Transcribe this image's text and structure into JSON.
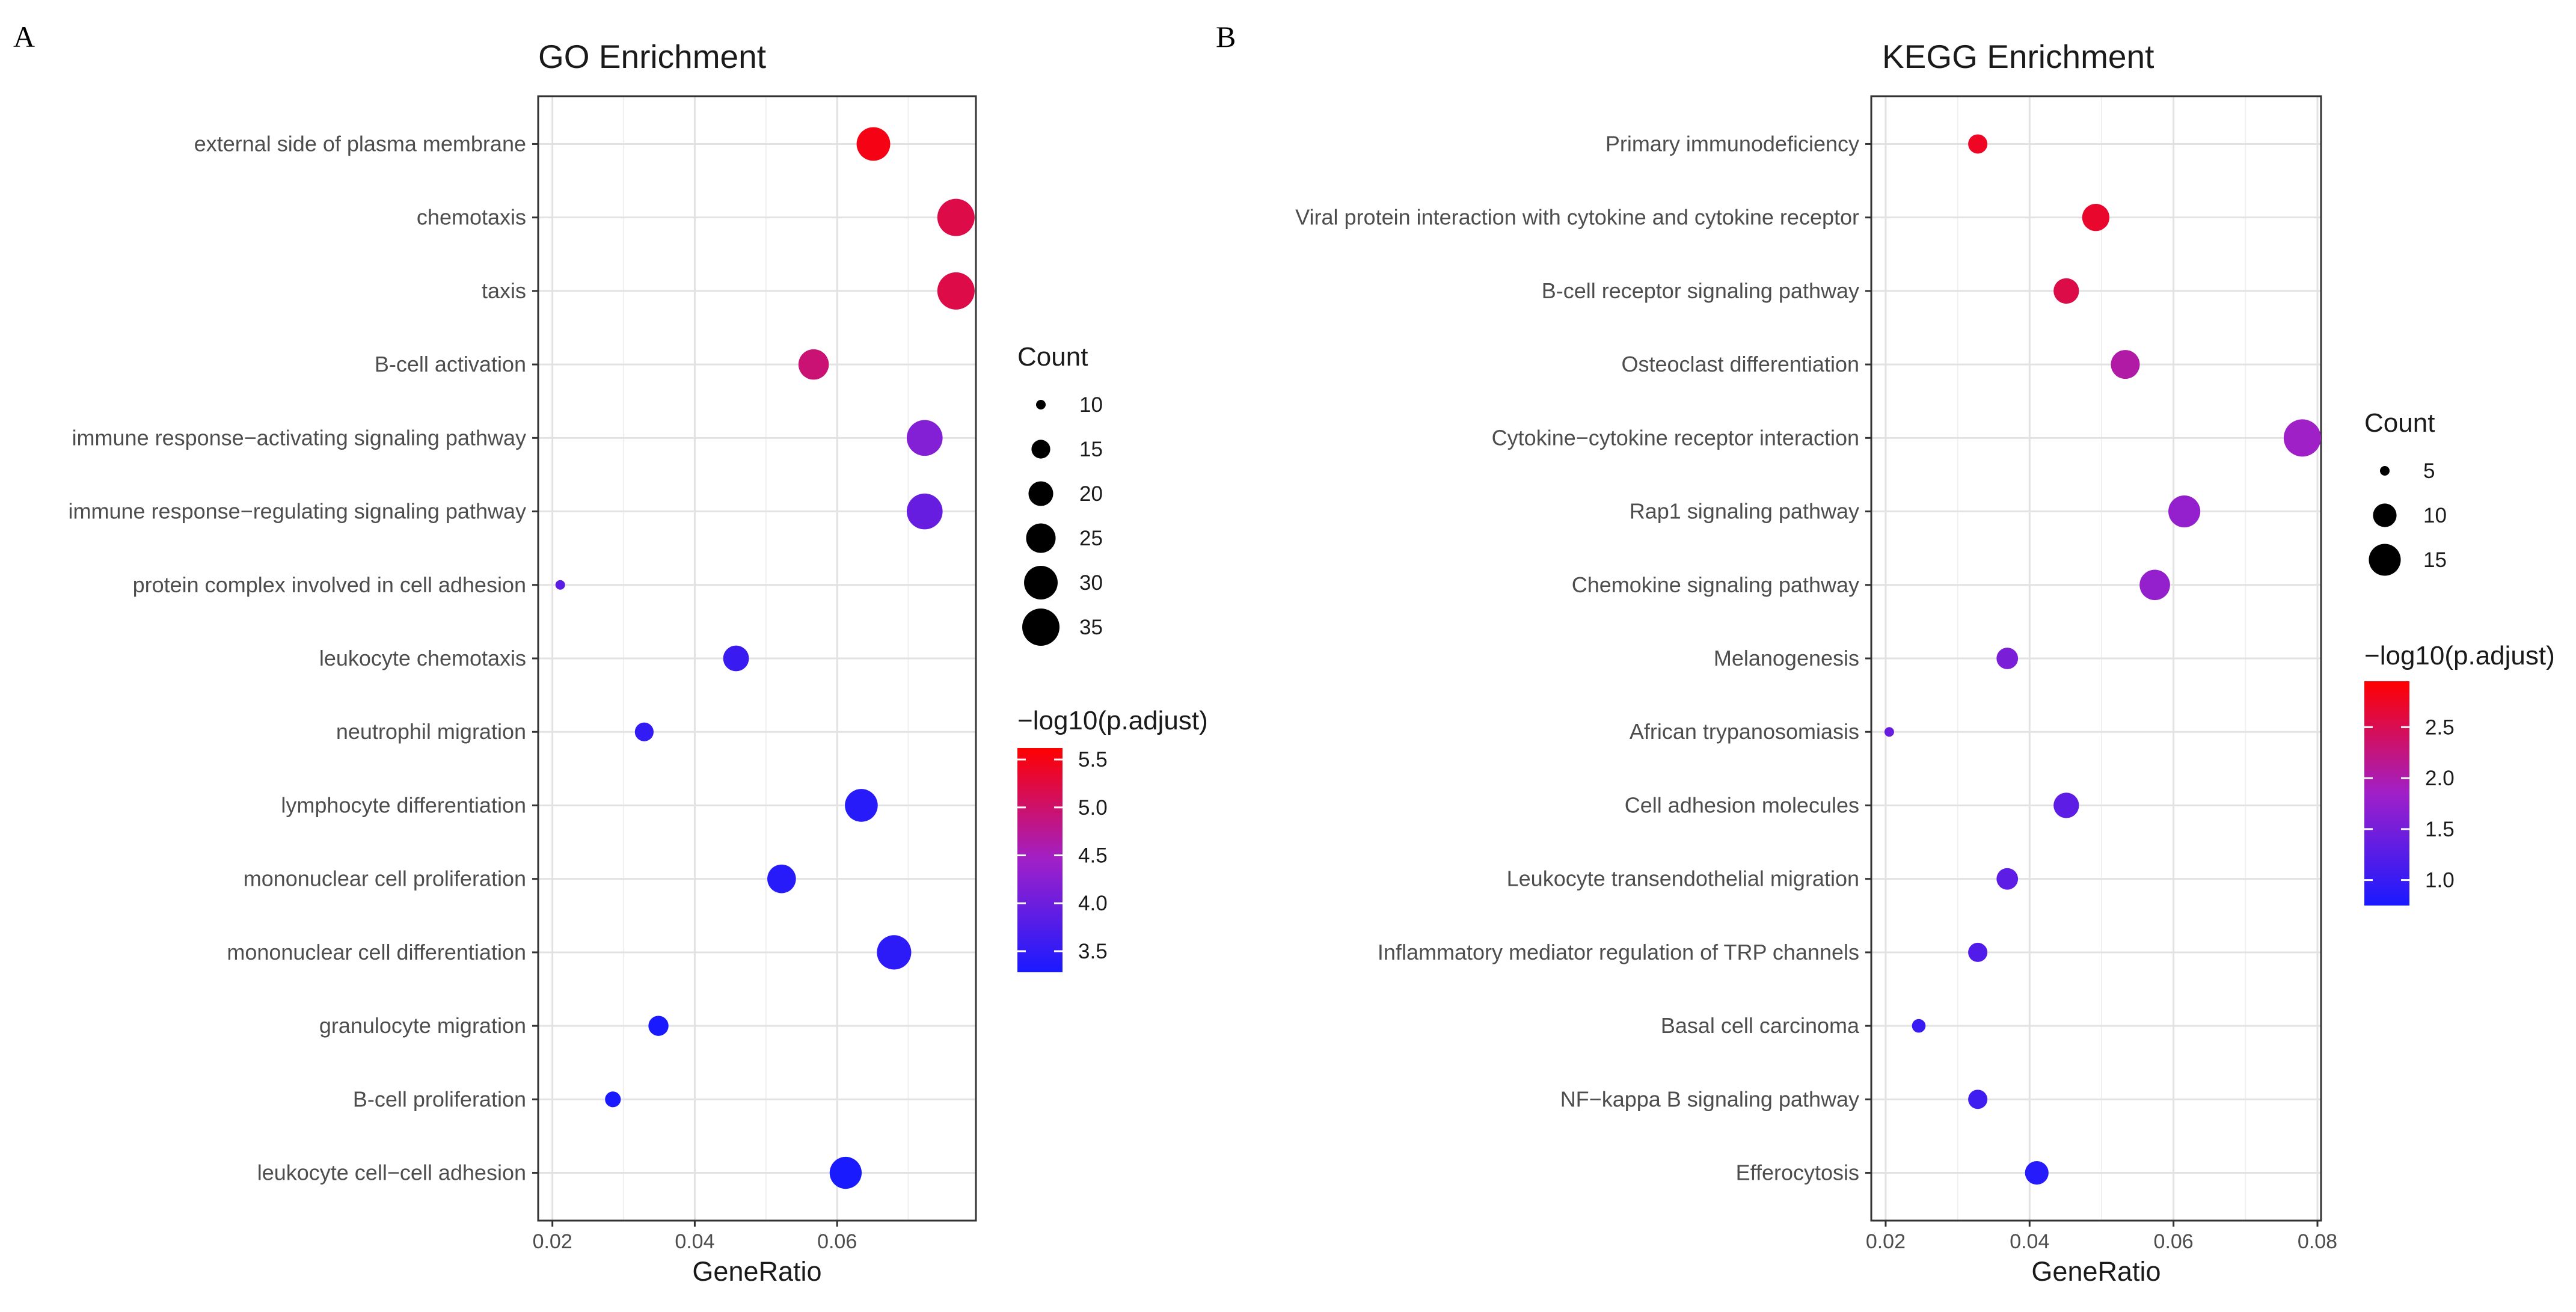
{
  "figure_labels": [
    "A",
    "B"
  ],
  "chart_data": [
    {
      "panel": "A",
      "type": "scatter",
      "title": "GO Enrichment",
      "xlabel": "GeneRatio",
      "ylabel": "",
      "xlim": [
        0.018,
        0.0795
      ],
      "xticks": [
        0.02,
        0.04,
        0.06
      ],
      "xtick_labels": [
        "0.02",
        "0.04",
        "0.06"
      ],
      "grid": true,
      "categories": [
        "external side of plasma membrane",
        "chemotaxis",
        "taxis",
        "B-cell activation",
        "immune response−activating signaling pathway",
        "immune response−regulating signaling pathway",
        "protein complex involved in cell adhesion",
        "leukocyte chemotaxis",
        "neutrophil migration",
        "lymphocyte differentiation",
        "mononuclear cell proliferation",
        "mononuclear cell differentiation",
        "granulocyte migration",
        "B-cell proliferation",
        "leukocyte cell−cell adhesion"
      ],
      "gene_ratio": [
        0.0651,
        0.0767,
        0.0767,
        0.0567,
        0.0723,
        0.0723,
        0.0211,
        0.0458,
        0.0329,
        0.0634,
        0.0522,
        0.068,
        0.0349,
        0.0285,
        0.0612
      ],
      "count": [
        30,
        35,
        35,
        26,
        33,
        33,
        10,
        21,
        15,
        29,
        24,
        31,
        16,
        13,
        28
      ],
      "neg_log10_padj": [
        5.5,
        5.2,
        5.2,
        4.95,
        4.2,
        3.95,
        3.85,
        3.55,
        3.5,
        3.4,
        3.4,
        3.45,
        3.2,
        3.2,
        3.15
      ],
      "size_legend": {
        "title": "Count",
        "breaks": [
          10,
          15,
          20,
          25,
          30,
          35
        ],
        "labels": [
          "10",
          "15",
          "20",
          "25",
          "30",
          "35"
        ]
      },
      "color_legend": {
        "title": "−log10(p.adjust)",
        "range": [
          3.28,
          5.62
        ],
        "breaks": [
          5.5,
          5.0,
          4.5,
          4.0,
          3.5
        ],
        "labels": [
          "5.5",
          "5.0",
          "4.5",
          "4.0",
          "3.5"
        ]
      },
      "legend_position": "right",
      "colors": {
        "low": "#1a1aff",
        "mid": "#a020c8",
        "high": "#ff0000"
      }
    },
    {
      "panel": "B",
      "type": "scatter",
      "title": "KEGG Enrichment",
      "xlabel": "GeneRatio",
      "ylabel": "",
      "xlim": [
        0.018,
        0.0805
      ],
      "xticks": [
        0.02,
        0.04,
        0.06,
        0.08
      ],
      "xtick_labels": [
        "0.02",
        "0.04",
        "0.06",
        "0.08"
      ],
      "grid": true,
      "categories": [
        "Primary immunodeficiency",
        "Viral protein interaction with cytokine and cytokine receptor",
        "B-cell receptor signaling pathway",
        "Osteoclast differentiation",
        "Cytokine−cytokine receptor interaction",
        "Rap1 signaling pathway",
        "Chemokine signaling pathway",
        "Melanogenesis",
        "African trypanosomiasis",
        "Cell adhesion molecules",
        "Leukocyte transendothelial migration",
        "Inflammatory mediator regulation of TRP channels",
        "Basal cell carcinoma",
        "NF−kappa B signaling pathway",
        "Efferocytosis"
      ],
      "gene_ratio": [
        0.0328,
        0.0492,
        0.0451,
        0.0533,
        0.0779,
        0.0615,
        0.0574,
        0.0369,
        0.0205,
        0.0451,
        0.0369,
        0.0328,
        0.0246,
        0.0328,
        0.041
      ],
      "count": [
        8,
        12,
        11,
        13,
        19,
        15,
        14,
        9,
        5,
        11,
        9,
        8,
        6,
        8,
        10
      ],
      "neg_log10_padj": [
        2.75,
        2.7,
        2.55,
        2.05,
        1.85,
        1.75,
        1.75,
        1.55,
        1.4,
        1.3,
        1.3,
        1.2,
        1.0,
        1.05,
        0.85
      ],
      "size_legend": {
        "title": "Count",
        "breaks": [
          5,
          10,
          15
        ],
        "labels": [
          "5",
          "10",
          "15"
        ]
      },
      "color_legend": {
        "title": "−log10(p.adjust)",
        "range": [
          0.75,
          2.95
        ],
        "breaks": [
          2.5,
          2.0,
          1.5,
          1.0
        ],
        "labels": [
          "2.5",
          "2.0",
          "1.5",
          "1.0"
        ]
      },
      "legend_position": "right",
      "colors": {
        "low": "#1a1aff",
        "mid": "#a020c8",
        "high": "#ff0000"
      }
    }
  ]
}
